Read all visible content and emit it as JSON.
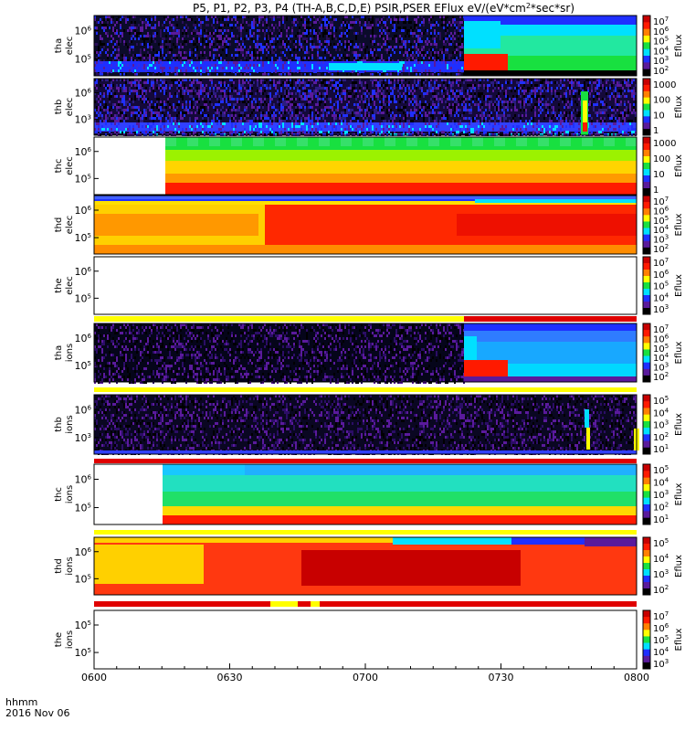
{
  "chart_data": {
    "type": "heatmap",
    "title": "P5, P1, P2, P3, P4 (TH-A,B,C,D,E) PSIR,PSER EFlux eV/(eV*cm²*sec*sr)",
    "title_parts": {
      "before": "P5, P1, P2, P3, P4 (TH-A,B,C,D,E) PSIR,PSER EFlux eV/(eV*cm",
      "sup": "2",
      "after": "*sec*sr)"
    },
    "time_axis": {
      "ticks": [
        "0600",
        "0630",
        "0700",
        "0730",
        "0800"
      ],
      "range": [
        "0600",
        "0800"
      ],
      "label": "hhmm",
      "date": "2016 Nov 06"
    },
    "colorbar_label": "Eflux",
    "panels": [
      {
        "name": "tha elec",
        "probe": "tha",
        "species": "elec",
        "ylog": true,
        "yticks": [
          {
            "m": "10",
            "e": "6"
          },
          {
            "m": "10",
            "e": "5"
          }
        ],
        "cbar_ticks": [
          {
            "m": "10",
            "e": "7"
          },
          {
            "m": "10",
            "e": "6"
          },
          {
            "m": "10",
            "e": "5"
          },
          {
            "m": "10",
            "e": "4"
          },
          {
            "m": "10",
            "e": "3"
          },
          {
            "m": "10",
            "e": "2"
          }
        ],
        "cbar_range_exp": [
          1.5,
          7.4
        ]
      },
      {
        "name": "thb elec",
        "probe": "thb",
        "species": "elec",
        "ylog": true,
        "yticks": [
          {
            "m": "10",
            "e": "6"
          },
          {
            "m": "10",
            "e": "3"
          }
        ],
        "cbar_ticks": [
          {
            "m": "1000",
            "e": ""
          },
          {
            "m": "100",
            "e": ""
          },
          {
            "m": "10",
            "e": ""
          },
          {
            "m": "1",
            "e": ""
          }
        ],
        "cbar_range_exp": [
          -0.5,
          3.9
        ]
      },
      {
        "name": "thc elec",
        "probe": "thc",
        "species": "elec",
        "ylog": true,
        "yticks": [
          {
            "m": "10",
            "e": "6"
          },
          {
            "m": "10",
            "e": "5"
          }
        ],
        "cbar_ticks": [
          {
            "m": "1000",
            "e": ""
          },
          {
            "m": "100",
            "e": ""
          },
          {
            "m": "10",
            "e": ""
          },
          {
            "m": "1",
            "e": ""
          }
        ],
        "cbar_range_exp": [
          -0.5,
          3.9
        ]
      },
      {
        "name": "thd elec",
        "probe": "thd",
        "species": "elec",
        "ylog": true,
        "yticks": [
          {
            "m": "10",
            "e": "6"
          },
          {
            "m": "10",
            "e": "5"
          }
        ],
        "cbar_ticks": [
          {
            "m": "10",
            "e": "7"
          },
          {
            "m": "10",
            "e": "6"
          },
          {
            "m": "10",
            "e": "5"
          },
          {
            "m": "10",
            "e": "4"
          },
          {
            "m": "10",
            "e": "3"
          },
          {
            "m": "10",
            "e": "2"
          }
        ],
        "cbar_range_exp": [
          1.5,
          7.4
        ]
      },
      {
        "name": "the elec",
        "probe": "the",
        "species": "elec",
        "ylog": true,
        "yticks": [
          {
            "m": "10",
            "e": "6"
          },
          {
            "m": "10",
            "e": "5"
          }
        ],
        "cbar_ticks": [
          {
            "m": "10",
            "e": "7"
          },
          {
            "m": "10",
            "e": "6"
          },
          {
            "m": "10",
            "e": "5"
          },
          {
            "m": "10",
            "e": "4"
          },
          {
            "m": "10",
            "e": "3"
          }
        ],
        "cbar_range_exp": [
          2.5,
          7.4
        ]
      },
      {
        "name": "tha ions",
        "probe": "tha",
        "species": "ions",
        "ylog": true,
        "yticks": [
          {
            "m": "10",
            "e": "6"
          },
          {
            "m": "10",
            "e": "5"
          }
        ],
        "cbar_ticks": [
          {
            "m": "10",
            "e": "7"
          },
          {
            "m": "10",
            "e": "6"
          },
          {
            "m": "10",
            "e": "5"
          },
          {
            "m": "10",
            "e": "4"
          },
          {
            "m": "10",
            "e": "3"
          },
          {
            "m": "10",
            "e": "2"
          }
        ],
        "cbar_range_exp": [
          1.5,
          7.4
        ]
      },
      {
        "name": "thb ions",
        "probe": "thb",
        "species": "ions",
        "ylog": true,
        "yticks": [
          {
            "m": "10",
            "e": "6"
          },
          {
            "m": "10",
            "e": "3"
          }
        ],
        "cbar_ticks": [
          {
            "m": "10",
            "e": "5"
          },
          {
            "m": "10",
            "e": "4"
          },
          {
            "m": "10",
            "e": "3"
          },
          {
            "m": "10",
            "e": "2"
          },
          {
            "m": "10",
            "e": "1"
          }
        ],
        "cbar_range_exp": [
          0.5,
          5.4
        ]
      },
      {
        "name": "thc ions",
        "probe": "thc",
        "species": "ions",
        "ylog": true,
        "yticks": [
          {
            "m": "10",
            "e": "6"
          },
          {
            "m": "10",
            "e": "5"
          }
        ],
        "cbar_ticks": [
          {
            "m": "10",
            "e": "5"
          },
          {
            "m": "10",
            "e": "4"
          },
          {
            "m": "10",
            "e": "3"
          },
          {
            "m": "10",
            "e": "2"
          },
          {
            "m": "10",
            "e": "1"
          }
        ],
        "cbar_range_exp": [
          0.5,
          5.4
        ]
      },
      {
        "name": "thd ions",
        "probe": "thd",
        "species": "ions",
        "ylog": true,
        "yticks": [
          {
            "m": "10",
            "e": "6"
          },
          {
            "m": "10",
            "e": "5"
          }
        ],
        "cbar_ticks": [
          {
            "m": "10",
            "e": "5"
          },
          {
            "m": "10",
            "e": "4"
          },
          {
            "m": "10",
            "e": "3"
          },
          {
            "m": "10",
            "e": "2"
          }
        ],
        "cbar_range_exp": [
          1.5,
          5.4
        ]
      },
      {
        "name": "the ions",
        "probe": "the",
        "species": "ions",
        "ylog": true,
        "yticks": [
          {
            "m": "10",
            "e": "5"
          },
          {
            "m": "10",
            "e": "5"
          }
        ],
        "cbar_ticks": [
          {
            "m": "10",
            "e": "7"
          },
          {
            "m": "10",
            "e": "6"
          },
          {
            "m": "10",
            "e": "5"
          },
          {
            "m": "10",
            "e": "4"
          },
          {
            "m": "10",
            "e": "3"
          }
        ],
        "cbar_range_exp": [
          2.5,
          7.4
        ]
      }
    ],
    "colors": {
      "low": "#000000",
      "purple": "#5a1a9c",
      "blue": "#1f2fff",
      "cyan": "#00e0ff",
      "green": "#18e040",
      "yellow": "#ffff00",
      "red": "#ff1a00",
      "max": "#c80000",
      "mode_bar_yellow": "#ffff00",
      "mode_bar_red": "#e00000"
    }
  }
}
